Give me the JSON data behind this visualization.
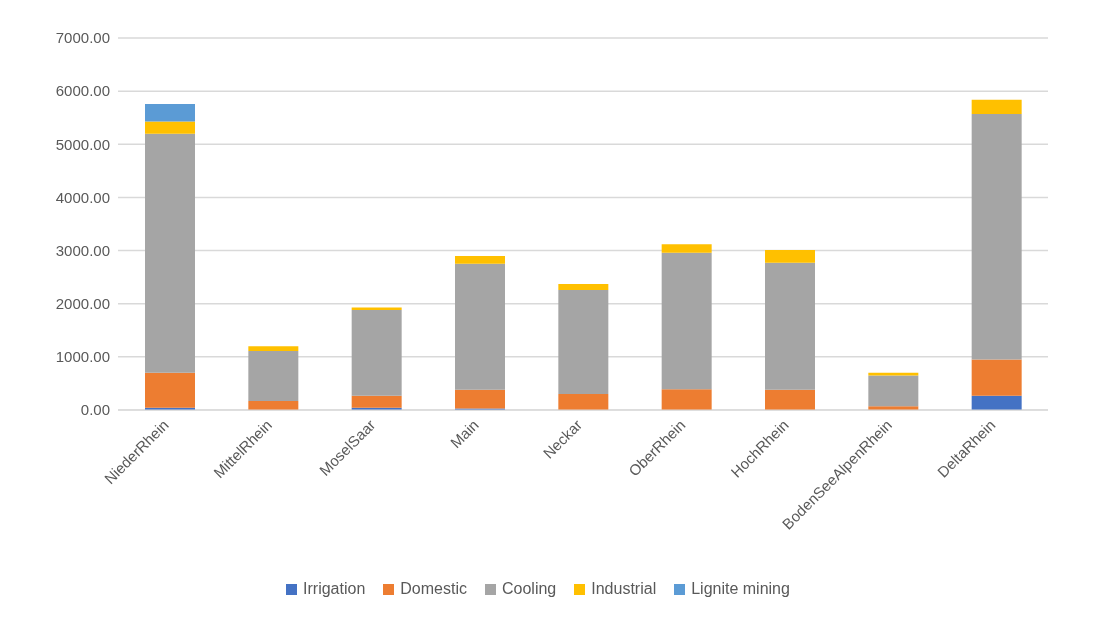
{
  "chart_data": {
    "type": "bar",
    "stacked": true,
    "categories": [
      "NiederRhein",
      "MittelRhein",
      "MoselSaar",
      "Main",
      "Neckar",
      "OberRhein",
      "HochRhein",
      "BodenSeeAlpenRhein",
      "DeltaRhein"
    ],
    "series": [
      {
        "name": "Irrigation",
        "color": "#4472c4",
        "values": [
          40,
          0,
          40,
          30,
          0,
          0,
          0,
          0,
          270
        ]
      },
      {
        "name": "Domestic",
        "color": "#ed7d31",
        "values": [
          660,
          170,
          230,
          350,
          300,
          390,
          380,
          70,
          680
        ]
      },
      {
        "name": "Cooling",
        "color": "#a5a5a5",
        "values": [
          4500,
          940,
          1610,
          2370,
          1960,
          2570,
          2390,
          580,
          4620
        ]
      },
      {
        "name": "Industrial",
        "color": "#ffc000",
        "values": [
          230,
          90,
          50,
          150,
          110,
          160,
          240,
          50,
          270
        ]
      },
      {
        "name": "Lignite mining",
        "color": "#5b9bd5",
        "values": [
          330,
          0,
          0,
          0,
          0,
          0,
          0,
          0,
          0
        ]
      }
    ],
    "ylim": [
      0,
      7000
    ],
    "yticks": [
      {
        "value": 0,
        "label": "0.00"
      },
      {
        "value": 1000,
        "label": "1000.00"
      },
      {
        "value": 2000,
        "label": "2000.00"
      },
      {
        "value": 3000,
        "label": "3000.00"
      },
      {
        "value": 4000,
        "label": "4000.00"
      },
      {
        "value": 5000,
        "label": "5000.00"
      },
      {
        "value": 6000,
        "label": "6000.00"
      },
      {
        "value": 7000,
        "label": "7000.00"
      }
    ],
    "grid": "y",
    "legend": "bottom"
  }
}
